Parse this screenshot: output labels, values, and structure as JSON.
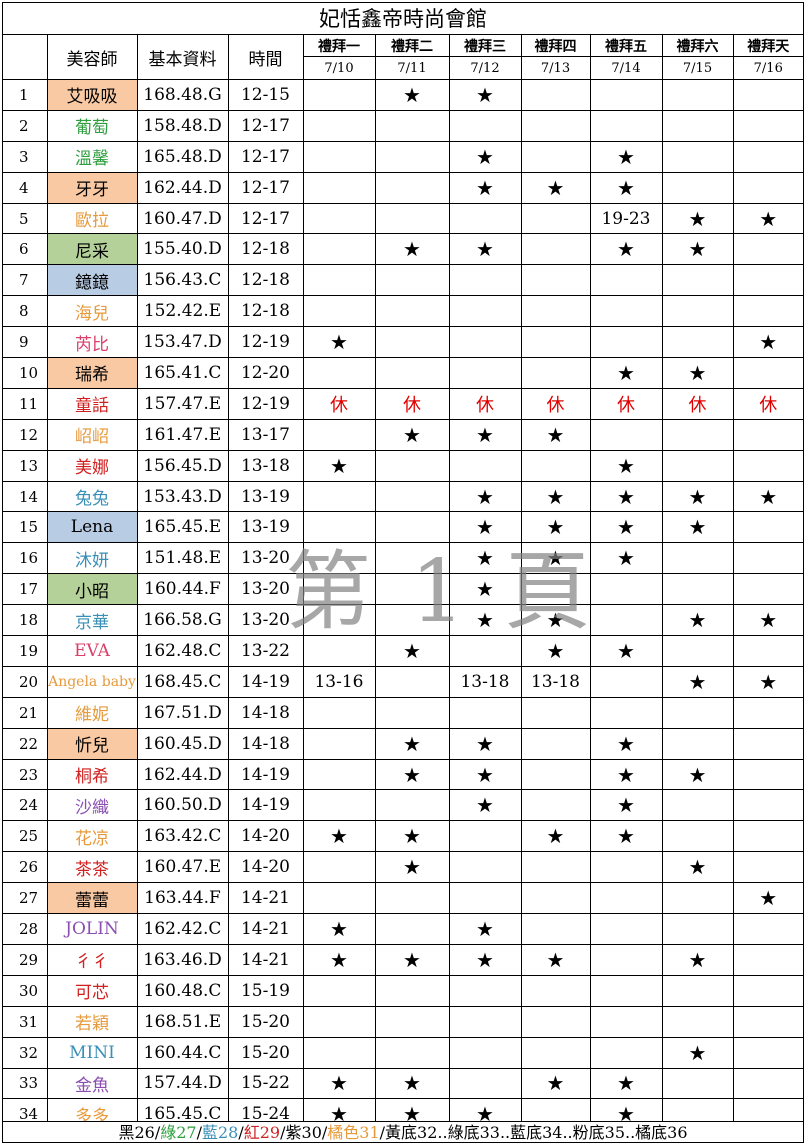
{
  "title": "妃恬鑫帝時尚會館",
  "headers": {
    "stylist": "美容師",
    "info": "基本資料",
    "time": "時間"
  },
  "days": [
    {
      "label": "禮拜一",
      "date": "7/10"
    },
    {
      "label": "禮拜二",
      "date": "7/11"
    },
    {
      "label": "禮拜三",
      "date": "7/12"
    },
    {
      "label": "禮拜四",
      "date": "7/13"
    },
    {
      "label": "禮拜五",
      "date": "7/14"
    },
    {
      "label": "禮拜六",
      "date": "7/15"
    },
    {
      "label": "禮拜天",
      "date": "7/16"
    }
  ],
  "rows": [
    {
      "num": "1",
      "name": "艾吸吸",
      "nameColor": "#000000",
      "bg": "#f9c9a4",
      "info": "168.48.G",
      "time": "12-15",
      "cells": [
        "",
        "★",
        "★",
        "",
        "",
        "",
        ""
      ]
    },
    {
      "num": "2",
      "name": "葡萄",
      "nameColor": "#2e9e3e",
      "bg": "",
      "info": "158.48.D",
      "time": "12-17",
      "cells": [
        "",
        "",
        "",
        "",
        "",
        "",
        ""
      ]
    },
    {
      "num": "3",
      "name": "溫馨",
      "nameColor": "#2e9e3e",
      "bg": "",
      "info": "165.48.D",
      "time": "12-17",
      "cells": [
        "",
        "",
        "★",
        "",
        "★",
        "",
        ""
      ]
    },
    {
      "num": "4",
      "name": "牙牙",
      "nameColor": "#000000",
      "bg": "#f9c9a4",
      "info": "162.44.D",
      "time": "12-17",
      "cells": [
        "",
        "",
        "★",
        "★",
        "★",
        "",
        ""
      ]
    },
    {
      "num": "5",
      "name": "歐拉",
      "nameColor": "#e69a3c",
      "bg": "",
      "info": "160.47.D",
      "time": "12-17",
      "cells": [
        "",
        "",
        "",
        "",
        "19-23",
        "★",
        "★"
      ]
    },
    {
      "num": "6",
      "name": "尼采",
      "nameColor": "#000000",
      "bg": "#b5d19a",
      "info": "155.40.D",
      "time": "12-18",
      "cells": [
        "",
        "★",
        "★",
        "",
        "★",
        "★",
        ""
      ]
    },
    {
      "num": "7",
      "name": "鐿鐿",
      "nameColor": "#000000",
      "bg": "#b8cce4",
      "info": "156.43.C",
      "time": "12-18",
      "cells": [
        "",
        "",
        "",
        "",
        "",
        "",
        ""
      ]
    },
    {
      "num": "8",
      "name": "海兒",
      "nameColor": "#e69a3c",
      "bg": "",
      "info": "152.42.E",
      "time": "12-18",
      "cells": [
        "",
        "",
        "",
        "",
        "",
        "",
        ""
      ]
    },
    {
      "num": "9",
      "name": "芮比",
      "nameColor": "#d8406a",
      "bg": "",
      "info": "153.47.D",
      "time": "12-19",
      "cells": [
        "★",
        "",
        "",
        "",
        "",
        "",
        "★"
      ]
    },
    {
      "num": "10",
      "name": "瑞希",
      "nameColor": "#000000",
      "bg": "#f9c9a4",
      "info": "165.41.C",
      "time": "12-20",
      "cells": [
        "",
        "",
        "",
        "",
        "★",
        "★",
        ""
      ]
    },
    {
      "num": "11",
      "name": "童話",
      "nameColor": "#d02020",
      "bg": "",
      "info": "157.47.E",
      "time": "12-19",
      "cells": [
        "休",
        "休",
        "休",
        "休",
        "休",
        "休",
        "休"
      ]
    },
    {
      "num": "12",
      "name": "岹岹",
      "nameColor": "#e69a3c",
      "bg": "",
      "info": "161.47.E",
      "time": "13-17",
      "cells": [
        "",
        "★",
        "★",
        "★",
        "",
        "",
        ""
      ]
    },
    {
      "num": "13",
      "name": "美娜",
      "nameColor": "#d02020",
      "bg": "",
      "info": "156.45.D",
      "time": "13-18",
      "cells": [
        "★",
        "",
        "",
        "",
        "★",
        "",
        ""
      ]
    },
    {
      "num": "14",
      "name": "兔兔",
      "nameColor": "#3a8fb7",
      "bg": "",
      "info": "153.43.D",
      "time": "13-19",
      "cells": [
        "",
        "",
        "★",
        "★",
        "★",
        "★",
        "★"
      ]
    },
    {
      "num": "15",
      "name": "Lena",
      "nameColor": "#000000",
      "bg": "#b8cce4",
      "info": "165.45.E",
      "time": "13-19",
      "cells": [
        "",
        "",
        "★",
        "★",
        "★",
        "★",
        ""
      ]
    },
    {
      "num": "16",
      "name": "沐妍",
      "nameColor": "#3a8fb7",
      "bg": "",
      "info": "151.48.E",
      "time": "13-20",
      "cells": [
        "",
        "",
        "★",
        "★",
        "★",
        "",
        ""
      ]
    },
    {
      "num": "17",
      "name": "小昭",
      "nameColor": "#000000",
      "bg": "#b5d19a",
      "info": "160.44.F",
      "time": "13-20",
      "cells": [
        "",
        "",
        "★",
        "",
        "",
        "",
        ""
      ]
    },
    {
      "num": "18",
      "name": "京華",
      "nameColor": "#3a8fb7",
      "bg": "",
      "info": "166.58.G",
      "time": "13-20",
      "cells": [
        "",
        "",
        "★",
        "★",
        "",
        "★",
        "★"
      ]
    },
    {
      "num": "19",
      "name": "EVA",
      "nameColor": "#d8406a",
      "bg": "",
      "info": "162.48.C",
      "time": "13-22",
      "cells": [
        "",
        "★",
        "",
        "★",
        "★",
        "",
        ""
      ]
    },
    {
      "num": "20",
      "name": "Angela baby",
      "nameColor": "#e69a3c",
      "bg": "",
      "info": "168.45.C",
      "time": "14-19",
      "cells": [
        "13-16",
        "",
        "13-18",
        "13-18",
        "",
        "★",
        "★"
      ]
    },
    {
      "num": "21",
      "name": "維妮",
      "nameColor": "#e69a3c",
      "bg": "",
      "info": "167.51.D",
      "time": "14-18",
      "cells": [
        "",
        "",
        "",
        "",
        "",
        "",
        ""
      ]
    },
    {
      "num": "22",
      "name": "忻兒",
      "nameColor": "#000000",
      "bg": "#f9c9a4",
      "info": "160.45.D",
      "time": "14-18",
      "cells": [
        "",
        "★",
        "★",
        "",
        "★",
        "",
        ""
      ]
    },
    {
      "num": "23",
      "name": "桐希",
      "nameColor": "#d02020",
      "bg": "",
      "info": "162.44.D",
      "time": "14-19",
      "cells": [
        "",
        "★",
        "★",
        "",
        "★",
        "★",
        ""
      ]
    },
    {
      "num": "24",
      "name": "沙織",
      "nameColor": "#8a4fb0",
      "bg": "",
      "info": "160.50.D",
      "time": "14-19",
      "cells": [
        "",
        "",
        "★",
        "",
        "★",
        "",
        ""
      ]
    },
    {
      "num": "25",
      "name": "花凉",
      "nameColor": "#e69a3c",
      "bg": "",
      "info": "163.42.C",
      "time": "14-20",
      "cells": [
        "★",
        "★",
        "",
        "★",
        "★",
        "",
        ""
      ]
    },
    {
      "num": "26",
      "name": "茶茶",
      "nameColor": "#d02020",
      "bg": "",
      "info": "160.47.E",
      "time": "14-20",
      "cells": [
        "",
        "★",
        "",
        "",
        "",
        "★",
        ""
      ]
    },
    {
      "num": "27",
      "name": "蕾蕾",
      "nameColor": "#000000",
      "bg": "#f9c9a4",
      "info": "163.44.F",
      "time": "14-21",
      "cells": [
        "",
        "",
        "",
        "",
        "",
        "",
        "★"
      ]
    },
    {
      "num": "28",
      "name": "JOLIN",
      "nameColor": "#8a4fb0",
      "bg": "",
      "info": "162.42.C",
      "time": "14-21",
      "cells": [
        "★",
        "",
        "★",
        "",
        "",
        "",
        ""
      ]
    },
    {
      "num": "29",
      "name": "彳彳",
      "nameColor": "#d02020",
      "bg": "",
      "info": "163.46.D",
      "time": "14-21",
      "cells": [
        "★",
        "★",
        "★",
        "★",
        "",
        "★",
        ""
      ]
    },
    {
      "num": "30",
      "name": "可芯",
      "nameColor": "#d02020",
      "bg": "",
      "info": "160.48.C",
      "time": "15-19",
      "cells": [
        "",
        "",
        "",
        "",
        "",
        "",
        ""
      ]
    },
    {
      "num": "31",
      "name": "若穎",
      "nameColor": "#e69a3c",
      "bg": "",
      "info": "168.51.E",
      "time": "15-20",
      "cells": [
        "",
        "",
        "",
        "",
        "",
        "",
        ""
      ]
    },
    {
      "num": "32",
      "name": "MINI",
      "nameColor": "#3a8fb7",
      "bg": "",
      "info": "160.44.C",
      "time": "15-20",
      "cells": [
        "",
        "",
        "",
        "",
        "",
        "★",
        ""
      ]
    },
    {
      "num": "33",
      "name": "金魚",
      "nameColor": "#8a4fb0",
      "bg": "",
      "info": "157.44.D",
      "time": "15-22",
      "cells": [
        "★",
        "★",
        "",
        "★",
        "★",
        "",
        ""
      ]
    },
    {
      "num": "34",
      "name": "多多",
      "nameColor": "#e69a3c",
      "bg": "",
      "info": "165.45.C",
      "time": "15-24",
      "cells": [
        "★",
        "★",
        "★",
        "",
        "★",
        "",
        ""
      ]
    }
  ],
  "watermark": "第 1 頁",
  "footer": [
    {
      "text": "黑26/",
      "color": "#000000"
    },
    {
      "text": "綠27",
      "color": "#2e9e3e"
    },
    {
      "text": "/",
      "color": "#000000"
    },
    {
      "text": "藍28",
      "color": "#3a8fb7"
    },
    {
      "text": "/",
      "color": "#000000"
    },
    {
      "text": "紅29",
      "color": "#d02020"
    },
    {
      "text": "/紫30/",
      "color": "#000000"
    },
    {
      "text": "橘色31",
      "color": "#e69a3c"
    },
    {
      "text": "/黃底32..綠底33..藍底34..粉底35..橘底36",
      "color": "#000000"
    }
  ]
}
